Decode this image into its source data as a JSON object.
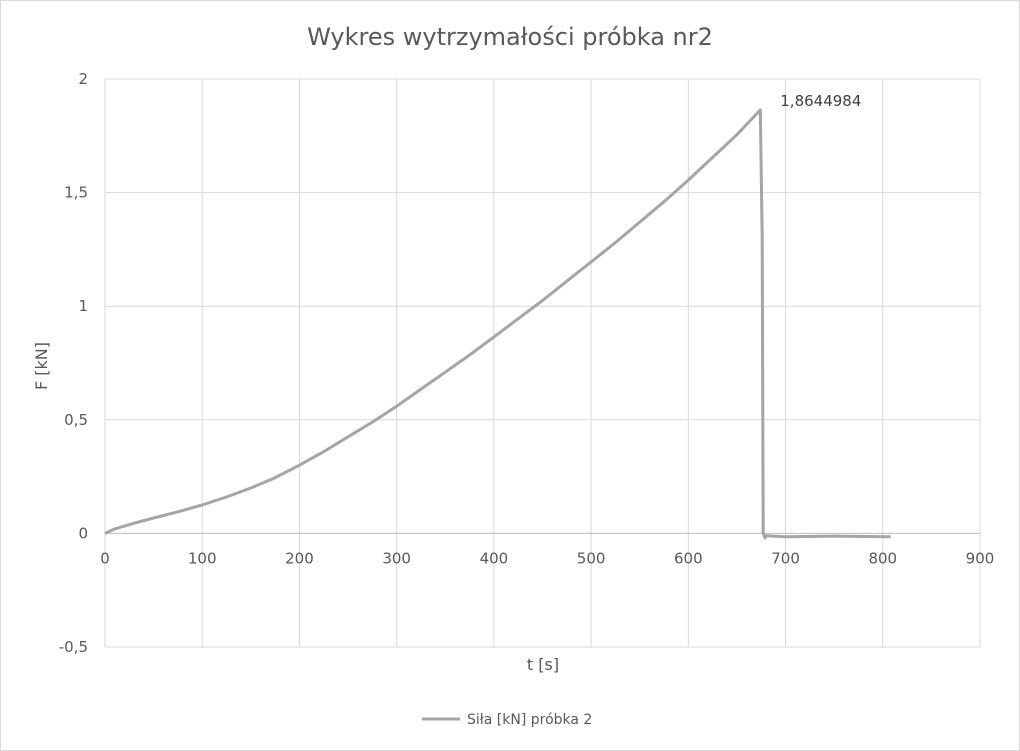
{
  "chart_data": {
    "type": "line",
    "title": "Wykres wytrzymałości próbka nr2",
    "xlabel": "t [s]",
    "ylabel": "F [kN]",
    "xlim": [
      0,
      900
    ],
    "ylim": [
      -0.5,
      2
    ],
    "x_ticks": [
      "0",
      "100",
      "200",
      "300",
      "400",
      "500",
      "600",
      "700",
      "800",
      "900"
    ],
    "y_ticks": [
      "-0,5",
      "0",
      "0,5",
      "1",
      "1,5",
      "2"
    ],
    "grid": true,
    "legend_position": "bottom",
    "series": [
      {
        "name": "Siła [kN] próbka 2",
        "color": "#a5a5a5",
        "x": [
          0,
          10,
          30,
          50,
          75,
          100,
          125,
          150,
          175,
          200,
          225,
          250,
          275,
          300,
          325,
          350,
          375,
          400,
          425,
          450,
          475,
          500,
          525,
          550,
          575,
          600,
          625,
          650,
          674,
          676,
          677,
          679,
          680,
          700,
          750,
          808
        ],
        "y": [
          0.0,
          0.02,
          0.045,
          0.068,
          0.095,
          0.125,
          0.16,
          0.2,
          0.245,
          0.3,
          0.36,
          0.425,
          0.49,
          0.56,
          0.635,
          0.71,
          0.785,
          0.865,
          0.945,
          1.025,
          1.11,
          1.195,
          1.28,
          1.37,
          1.46,
          1.555,
          1.655,
          1.755,
          1.864,
          1.3,
          0.0,
          -0.02,
          -0.01,
          -0.015,
          -0.012,
          -0.015
        ]
      }
    ],
    "annotations": [
      {
        "text": "1,8644984",
        "x": 674,
        "y": 1.8644984
      }
    ]
  }
}
